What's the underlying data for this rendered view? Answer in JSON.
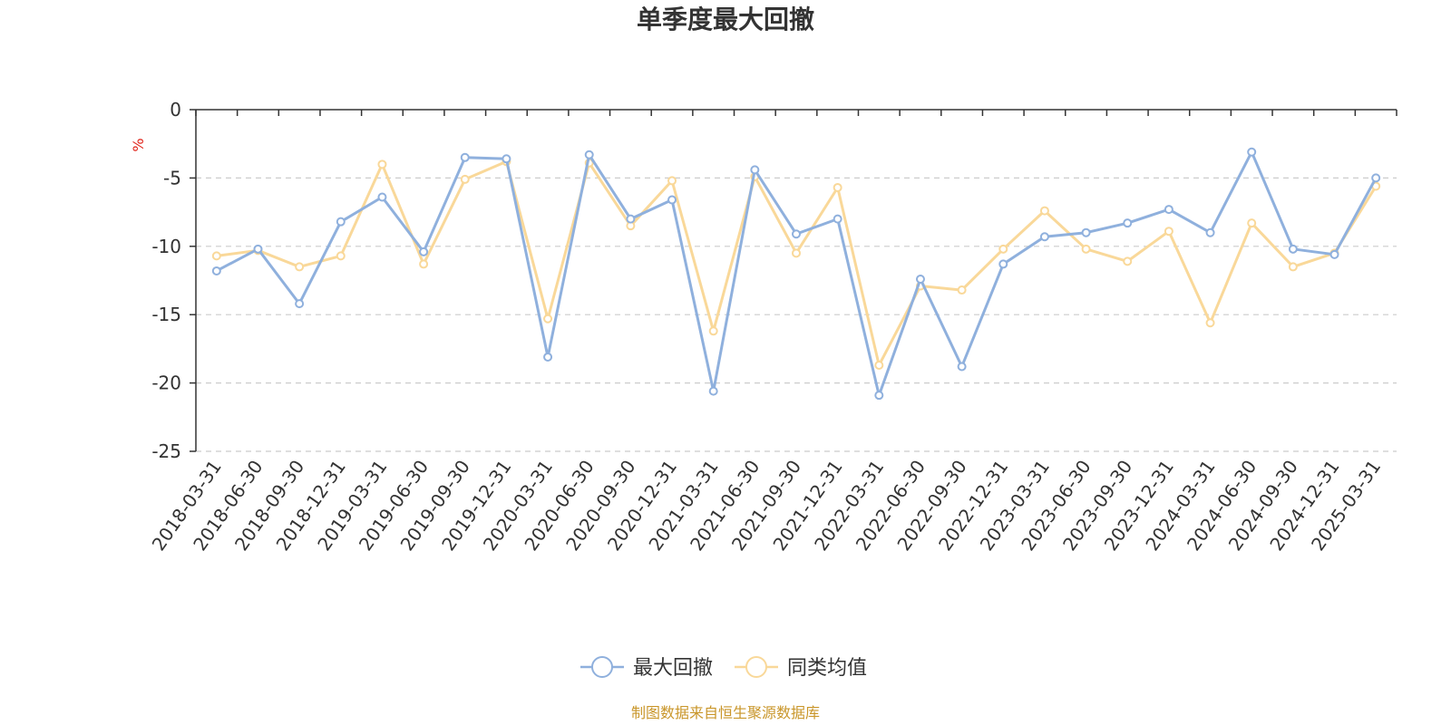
{
  "chart_data": {
    "type": "line",
    "title": "单季度最大回撤",
    "unit": "%",
    "source": "制图数据来自恒生聚源数据库",
    "ylim": [
      -25,
      0
    ],
    "yticks": [
      0,
      -5,
      -10,
      -15,
      -20,
      -25
    ],
    "grid": true,
    "legend_position": "bottom-center",
    "categories": [
      "2018-03-31",
      "2018-06-30",
      "2018-09-30",
      "2018-12-31",
      "2019-03-31",
      "2019-06-30",
      "2019-09-30",
      "2019-12-31",
      "2020-03-31",
      "2020-06-30",
      "2020-09-30",
      "2020-12-31",
      "2021-03-31",
      "2021-06-30",
      "2021-09-30",
      "2021-12-31",
      "2022-03-31",
      "2022-06-30",
      "2022-09-30",
      "2022-12-31",
      "2023-03-31",
      "2023-06-30",
      "2023-09-30",
      "2023-12-31",
      "2024-03-31",
      "2024-06-30",
      "2024-09-30",
      "2024-12-31",
      "2025-03-31"
    ],
    "series": [
      {
        "name": "最大回撤",
        "color": "#8fb0dd",
        "values": [
          -11.8,
          -10.2,
          -14.2,
          -8.2,
          -6.4,
          -10.4,
          -3.5,
          -3.6,
          -18.1,
          -3.3,
          -8.0,
          -6.6,
          -20.6,
          -4.4,
          -9.1,
          -8.0,
          -20.9,
          -12.4,
          -18.8,
          -11.3,
          -9.3,
          -9.0,
          -8.3,
          -7.3,
          -9.0,
          -3.1,
          -10.2,
          -10.6,
          -5.0
        ]
      },
      {
        "name": "同类均值",
        "color": "#f9d899",
        "values": [
          -10.7,
          -10.3,
          -11.5,
          -10.7,
          -4.0,
          -11.3,
          -5.1,
          -3.8,
          -15.3,
          -3.9,
          -8.5,
          -5.2,
          -16.2,
          -4.9,
          -10.5,
          -5.7,
          -18.7,
          -12.9,
          -13.2,
          -10.2,
          -7.4,
          -10.2,
          -11.1,
          -8.9,
          -15.6,
          -8.3,
          -11.5,
          -10.5,
          -5.6
        ]
      }
    ]
  }
}
